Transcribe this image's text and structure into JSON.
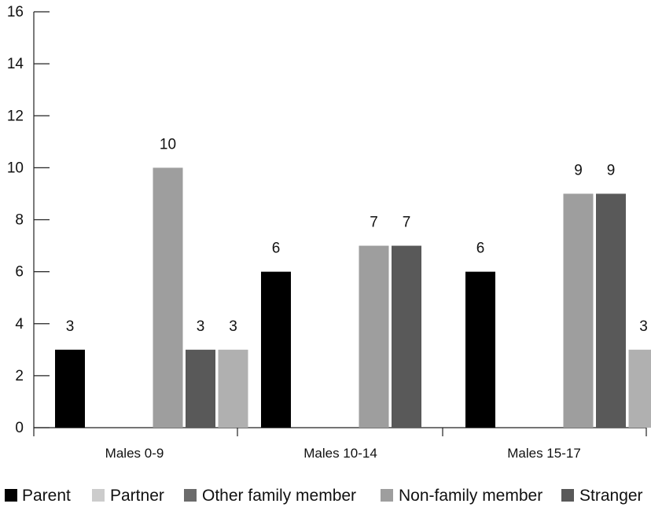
{
  "chart_data": {
    "type": "bar",
    "title": "",
    "xlabel": "",
    "ylabel": "",
    "ylim": [
      0,
      16
    ],
    "yticks": [
      0,
      2,
      4,
      6,
      8,
      10,
      12,
      14,
      16
    ],
    "grid": false,
    "legend_position": "bottom",
    "categories": [
      "Males 0-9",
      "Males 10-14",
      "Males 15-17"
    ],
    "series": [
      {
        "name": "Parent",
        "color": "#000000",
        "values": [
          3,
          6,
          6
        ]
      },
      {
        "name": "Partner",
        "color": "#cccccc",
        "values": [
          0,
          0,
          0
        ]
      },
      {
        "name": "Other family member",
        "color": "#6b6b6b",
        "values": [
          0,
          0,
          0
        ]
      },
      {
        "name": "Non-family member",
        "color": "#9e9e9e",
        "values": [
          10,
          7,
          9
        ]
      },
      {
        "name": "Stranger",
        "color": "#595959",
        "values": [
          3,
          7,
          9
        ]
      },
      {
        "name": "",
        "color": "#b0b0b0",
        "values": [
          3,
          null,
          3
        ]
      }
    ],
    "data_labels": [
      [
        "3",
        "",
        "",
        "10",
        "3",
        "3"
      ],
      [
        "6",
        "",
        "",
        "7",
        "7",
        ""
      ],
      [
        "6",
        "",
        "",
        "9",
        "9",
        "3"
      ]
    ]
  }
}
